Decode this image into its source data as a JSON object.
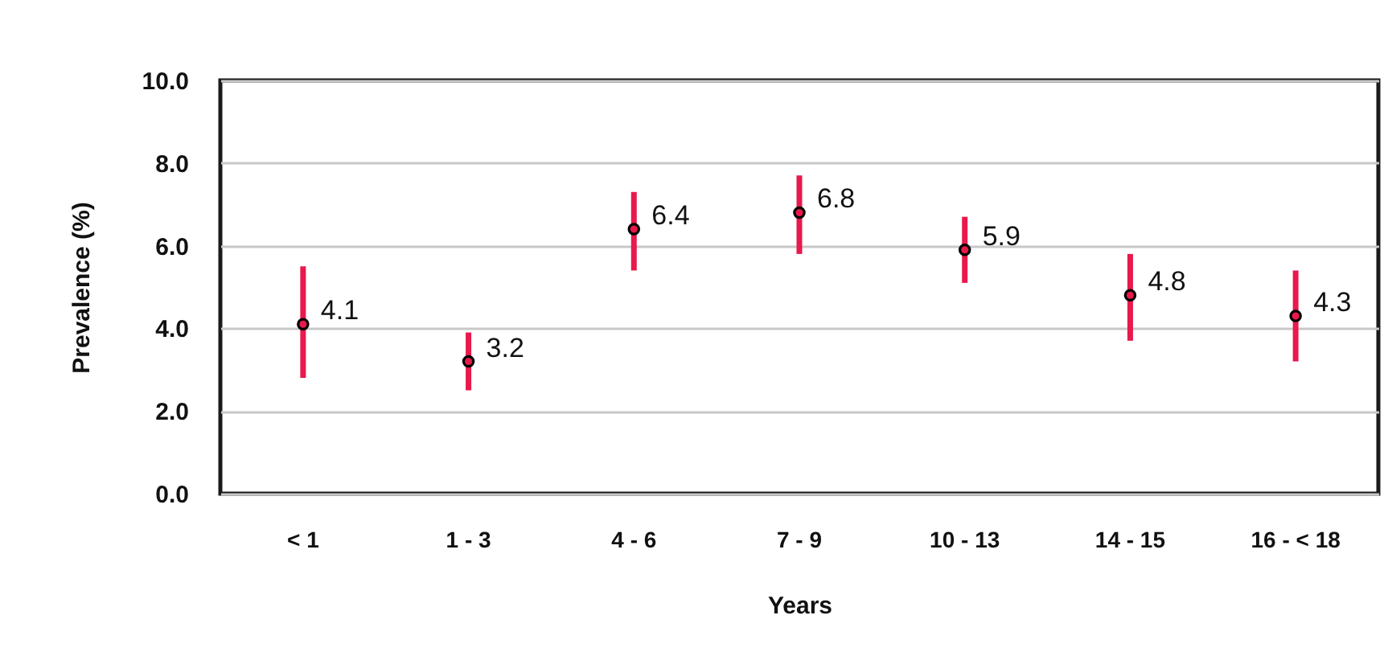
{
  "chart_data": {
    "type": "scatter",
    "xlabel": "Years",
    "ylabel": "Prevalence (%)",
    "categories": [
      "< 1",
      "1 - 3",
      "4 - 6",
      "7 - 9",
      "10 - 13",
      "14 - 15",
      "16 - < 18"
    ],
    "series": [
      {
        "color": "#e8194b",
        "values": [
          4.1,
          3.2,
          6.4,
          6.8,
          5.9,
          4.8,
          4.3
        ],
        "errors": [
          [
            2.8,
            5.5
          ],
          [
            2.5,
            3.9
          ],
          [
            5.4,
            7.3
          ],
          [
            5.8,
            7.7
          ],
          [
            5.1,
            6.7
          ],
          [
            3.7,
            5.8
          ],
          [
            3.2,
            5.4
          ]
        ]
      }
    ],
    "ylim": [
      0,
      10
    ],
    "yticks": [
      {
        "value": 0,
        "label": "0.0"
      },
      {
        "value": 2,
        "label": "2.0"
      },
      {
        "value": 4,
        "label": "4.0"
      },
      {
        "value": 6,
        "label": "6.0"
      },
      {
        "value": 8,
        "label": "8.0"
      },
      {
        "value": 10,
        "label": "10.0"
      }
    ],
    "grid": "y",
    "marker": "circle",
    "data_labels": true
  }
}
